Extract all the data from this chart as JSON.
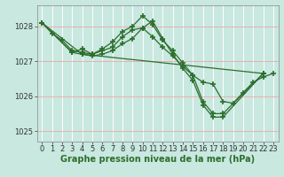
{
  "background_color": "#c8e8e0",
  "plot_bg_color": "#c8e8e0",
  "line_color": "#2d6e2d",
  "marker_color": "#2d6e2d",
  "grid_h_color": "#e8b0b0",
  "grid_v_color": "#ffffff",
  "xlabel": "Graphe pression niveau de la mer (hPa)",
  "xlim": [
    -0.5,
    23.5
  ],
  "ylim": [
    1024.7,
    1028.6
  ],
  "yticks": [
    1025,
    1026,
    1027,
    1028
  ],
  "xticks": [
    0,
    1,
    2,
    3,
    4,
    5,
    6,
    7,
    8,
    9,
    10,
    11,
    12,
    13,
    14,
    15,
    16,
    17,
    18,
    19,
    20,
    21,
    22,
    23
  ],
  "series": [
    {
      "x": [
        0,
        1,
        2,
        3,
        4,
        5,
        6,
        7,
        8,
        9,
        10,
        11,
        12,
        13,
        14,
        15,
        16,
        17,
        18,
        19,
        20,
        21,
        22,
        23
      ],
      "y": [
        1028.1,
        1027.8,
        1027.6,
        1027.3,
        1027.25,
        1027.2,
        1027.3,
        1027.4,
        1027.7,
        1027.9,
        1027.95,
        1027.7,
        1027.4,
        1027.15,
        1026.85,
        1026.6,
        1026.4,
        1026.35,
        1025.85,
        1025.8,
        1026.1,
        1026.4,
        1026.55,
        1026.65
      ]
    },
    {
      "x": [
        0,
        3,
        4,
        5,
        6,
        7,
        8,
        9,
        10,
        11,
        12,
        13,
        14,
        15,
        16,
        17,
        18,
        22
      ],
      "y": [
        1028.1,
        1027.25,
        1027.35,
        1027.2,
        1027.35,
        1027.55,
        1027.85,
        1028.0,
        1028.3,
        1028.05,
        1027.6,
        1027.3,
        1026.95,
        1026.6,
        1025.85,
        1025.5,
        1025.5,
        1026.65
      ]
    },
    {
      "x": [
        0,
        3,
        4,
        5,
        6,
        7,
        8,
        9,
        10,
        11,
        12,
        13,
        14,
        15,
        16,
        17,
        18,
        22
      ],
      "y": [
        1028.1,
        1027.25,
        1027.2,
        1027.15,
        1027.2,
        1027.3,
        1027.5,
        1027.65,
        1027.95,
        1028.15,
        1027.65,
        1027.2,
        1026.8,
        1026.45,
        1025.75,
        1025.4,
        1025.4,
        1026.65
      ]
    },
    {
      "x": [
        0,
        4,
        22
      ],
      "y": [
        1028.1,
        1027.2,
        1026.65
      ]
    }
  ],
  "title_fontsize": 7,
  "tick_fontsize": 6,
  "linewidth": 0.9,
  "markersize": 4,
  "markeredgewidth": 1.2
}
